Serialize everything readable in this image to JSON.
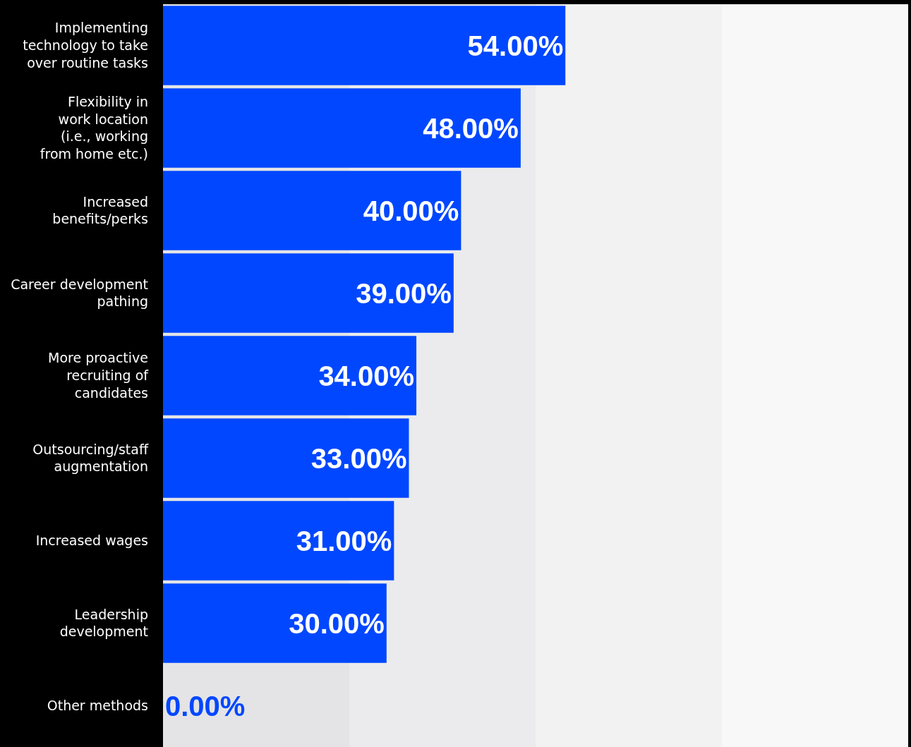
{
  "chart_data": {
    "type": "bar",
    "orientation": "horizontal",
    "categories": [
      "Implementing technology to take over routine tasks",
      "Flexibility in work location (i.e., working from home etc.)",
      "Increased benefits/perks",
      "Career development pathing",
      "More proactive recruiting of candidates",
      "Outsourcing/staff augmentation",
      "Increased wages",
      "Leadership development",
      "Other methods"
    ],
    "values": [
      54,
      48,
      40,
      39,
      34,
      33,
      31,
      30,
      0
    ],
    "value_labels": [
      "54.00%",
      "48.00%",
      "40.00%",
      "39.00%",
      "34.00%",
      "33.00%",
      "31.00%",
      "30.00%",
      "0.00%"
    ],
    "color": "#0047ff",
    "xlim": [
      0,
      100
    ],
    "tick_labels": "y",
    "grid": false,
    "legend": false,
    "bands": [
      {
        "axis": "x",
        "from": 0,
        "to": 25,
        "color": "#e4e4e6"
      },
      {
        "axis": "x",
        "from": 25,
        "to": 50,
        "color": "#ebebed"
      },
      {
        "axis": "x",
        "from": 50,
        "to": 75,
        "color": "#f2f2f2"
      },
      {
        "axis": "x",
        "from": 75,
        "to": 100,
        "color": "#f8f8f8"
      }
    ]
  }
}
